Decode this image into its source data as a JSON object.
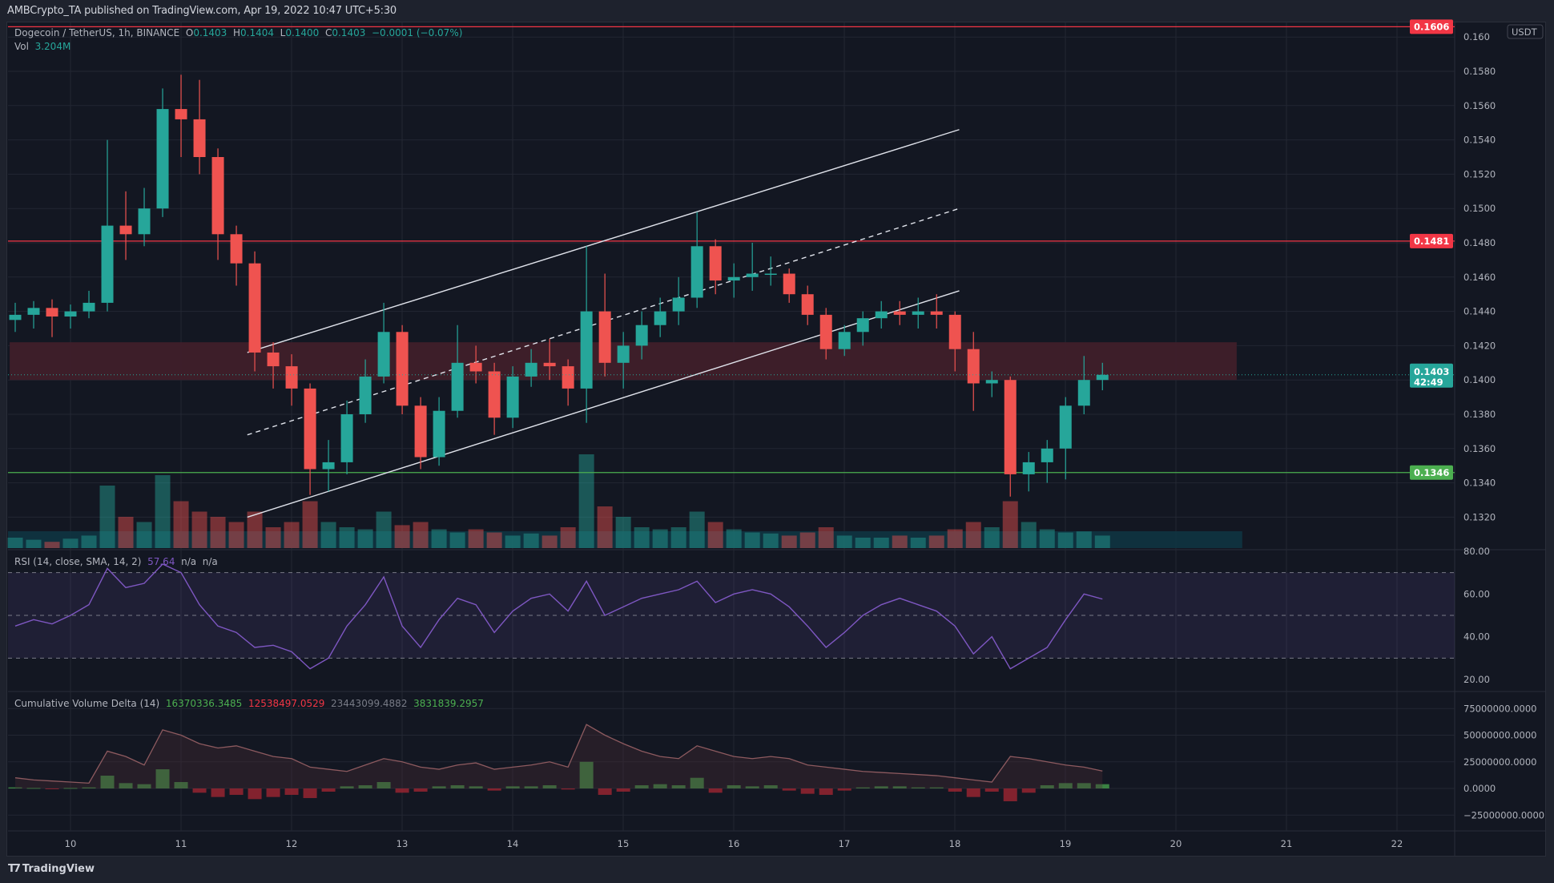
{
  "publisher_line": "AMBCrypto_TA published on TradingView.com, Apr 19, 2022 10:47 UTC+5:30",
  "footer": {
    "logo_text": "TradingView"
  },
  "legend": {
    "symbol": "Dogecoin / TetherUS, 1h, BINANCE",
    "o_label": "O",
    "o": "0.1403",
    "h_label": "H",
    "h": "0.1404",
    "l_label": "L",
    "l": "0.1400",
    "c_label": "C",
    "c": "0.1403",
    "change": "−0.0001 (−0.07%)",
    "vol_label": "Vol",
    "vol": "3.204M"
  },
  "rsi_legend": {
    "title": "RSI (14, close, SMA, 14, 2)",
    "value": "57.64",
    "na1": "n/a",
    "na2": "n/a"
  },
  "cvd_legend": {
    "title": "Cumulative Volume Delta (14)",
    "v1": "16370336.3485",
    "v2": "12538497.0529",
    "v3": "23443099.4882",
    "v4": "3831839.2957"
  },
  "currency_badge": "USDT",
  "colors": {
    "up": "#26a69a",
    "down": "#ef5350",
    "resistance": "#f23645",
    "support": "#4caf50",
    "zone": "#3f1f2a",
    "rsi": "#7e57c2",
    "grid": "#232733"
  },
  "chart_data": [
    {
      "type": "candlestick",
      "title": "Dogecoin / TetherUS, 1h, BINANCE",
      "x_axis": {
        "ticks": [
          "10",
          "11",
          "12",
          "13",
          "14",
          "15",
          "16",
          "17",
          "18",
          "19",
          "20",
          "21",
          "22"
        ],
        "range_days": [
          9.45,
          22.5
        ],
        "unit": "day of April 2022"
      },
      "y_axis": {
        "ticks": [
          "0.1320",
          "0.1340",
          "0.1360",
          "0.1380",
          "0.1400",
          "0.1420",
          "0.1440",
          "0.1460",
          "0.1480",
          "0.1500",
          "0.1520",
          "0.1540",
          "0.1560",
          "0.1580",
          "0.160"
        ],
        "range": [
          0.1303,
          0.1612
        ],
        "unit": "USDT"
      },
      "candle_interval_note": "approximate 4h aggregation of 1h candles",
      "candle_start_day": 9.5,
      "candle_step_day": 0.1667,
      "candles_ohlcv": [
        [
          0.1435,
          0.1445,
          0.1428,
          0.1438,
          10
        ],
        [
          0.1438,
          0.1446,
          0.143,
          0.1442,
          8
        ],
        [
          0.1442,
          0.1447,
          0.1425,
          0.1437,
          6
        ],
        [
          0.1437,
          0.1444,
          0.143,
          0.144,
          9
        ],
        [
          0.144,
          0.1452,
          0.1436,
          0.1445,
          12
        ],
        [
          0.1445,
          0.154,
          0.144,
          0.149,
          60
        ],
        [
          0.149,
          0.151,
          0.147,
          0.1485,
          30
        ],
        [
          0.1485,
          0.1512,
          0.1478,
          0.15,
          25
        ],
        [
          0.15,
          0.157,
          0.1495,
          0.1558,
          70
        ],
        [
          0.1558,
          0.1578,
          0.153,
          0.1552,
          45
        ],
        [
          0.1552,
          0.1575,
          0.152,
          0.153,
          35
        ],
        [
          0.153,
          0.1535,
          0.147,
          0.1485,
          30
        ],
        [
          0.1485,
          0.149,
          0.1455,
          0.1468,
          25
        ],
        [
          0.1468,
          0.1475,
          0.1405,
          0.1416,
          35
        ],
        [
          0.1416,
          0.1422,
          0.1395,
          0.1408,
          20
        ],
        [
          0.1408,
          0.1415,
          0.1385,
          0.1395,
          25
        ],
        [
          0.1395,
          0.1398,
          0.1333,
          0.1348,
          45
        ],
        [
          0.1348,
          0.1365,
          0.1335,
          0.1352,
          25
        ],
        [
          0.1352,
          0.1388,
          0.1345,
          0.138,
          20
        ],
        [
          0.138,
          0.1412,
          0.1375,
          0.1402,
          18
        ],
        [
          0.1402,
          0.1445,
          0.1398,
          0.1428,
          35
        ],
        [
          0.1428,
          0.1432,
          0.138,
          0.1385,
          22
        ],
        [
          0.1385,
          0.139,
          0.1348,
          0.1355,
          25
        ],
        [
          0.1355,
          0.139,
          0.135,
          0.1382,
          18
        ],
        [
          0.1382,
          0.1432,
          0.1378,
          0.141,
          15
        ],
        [
          0.141,
          0.142,
          0.1398,
          0.1405,
          18
        ],
        [
          0.1405,
          0.141,
          0.1368,
          0.1378,
          15
        ],
        [
          0.1378,
          0.1408,
          0.1372,
          0.1402,
          12
        ],
        [
          0.1402,
          0.1418,
          0.1396,
          0.141,
          14
        ],
        [
          0.141,
          0.1424,
          0.14,
          0.1408,
          12
        ],
        [
          0.1408,
          0.1412,
          0.1385,
          0.1395,
          20
        ],
        [
          0.1395,
          0.1478,
          0.1375,
          0.144,
          90
        ],
        [
          0.144,
          0.1462,
          0.1402,
          0.141,
          40
        ],
        [
          0.141,
          0.1428,
          0.1395,
          0.142,
          30
        ],
        [
          0.142,
          0.144,
          0.1412,
          0.1432,
          20
        ],
        [
          0.1432,
          0.1448,
          0.1425,
          0.144,
          18
        ],
        [
          0.144,
          0.146,
          0.1432,
          0.1448,
          20
        ],
        [
          0.1448,
          0.1498,
          0.1442,
          0.1478,
          35
        ],
        [
          0.1478,
          0.1482,
          0.145,
          0.1458,
          25
        ],
        [
          0.1458,
          0.1468,
          0.1448,
          0.146,
          18
        ],
        [
          0.146,
          0.148,
          0.1452,
          0.1462,
          15
        ],
        [
          0.1462,
          0.1472,
          0.1455,
          0.1462,
          14
        ],
        [
          0.1462,
          0.1465,
          0.1445,
          0.145,
          12
        ],
        [
          0.145,
          0.1455,
          0.1432,
          0.1438,
          15
        ],
        [
          0.1438,
          0.1442,
          0.1412,
          0.1418,
          20
        ],
        [
          0.1418,
          0.1432,
          0.1414,
          0.1428,
          12
        ],
        [
          0.1428,
          0.144,
          0.142,
          0.1436,
          10
        ],
        [
          0.1436,
          0.1446,
          0.143,
          0.144,
          10
        ],
        [
          0.144,
          0.1446,
          0.1432,
          0.1438,
          12
        ],
        [
          0.1438,
          0.1448,
          0.143,
          0.144,
          10
        ],
        [
          0.144,
          0.145,
          0.143,
          0.1438,
          12
        ],
        [
          0.1438,
          0.144,
          0.1405,
          0.1418,
          18
        ],
        [
          0.1418,
          0.1428,
          0.1382,
          0.1398,
          25
        ],
        [
          0.1398,
          0.1405,
          0.139,
          0.14,
          20
        ],
        [
          0.14,
          0.1402,
          0.1332,
          0.1345,
          45
        ],
        [
          0.1345,
          0.1358,
          0.1335,
          0.1352,
          25
        ],
        [
          0.1352,
          0.1365,
          0.134,
          0.136,
          18
        ],
        [
          0.136,
          0.139,
          0.1342,
          0.1385,
          15
        ],
        [
          0.1385,
          0.1414,
          0.138,
          0.14,
          16
        ],
        [
          0.14,
          0.141,
          0.1394,
          0.1403,
          12
        ]
      ],
      "horizontal_lines": [
        {
          "price": 0.1606,
          "label": "0.1606",
          "color": "#f23645"
        },
        {
          "price": 0.1481,
          "label": "0.1481",
          "color": "#f23645"
        },
        {
          "price": 0.1346,
          "label": "0.1346",
          "color": "#4caf50"
        }
      ],
      "zone": {
        "from_day": 9.45,
        "to_day": 20.55,
        "low": 0.14,
        "high": 0.1422,
        "color": "#3f1f2a"
      },
      "channel": {
        "upper": [
          [
            11.6,
            0.1416
          ],
          [
            18.04,
            0.1546
          ]
        ],
        "middle": [
          [
            11.6,
            0.1368
          ],
          [
            18.04,
            0.15
          ]
        ],
        "lower": [
          [
            11.6,
            0.132
          ],
          [
            18.04,
            0.1452
          ]
        ]
      },
      "last_price": {
        "value": "0.1403",
        "countdown": "42:49"
      }
    },
    {
      "type": "line",
      "title": "RSI (14, close, SMA, 14, 2)",
      "y_axis": {
        "ticks": [
          "80.00",
          "60.00",
          "40.00",
          "20.00"
        ],
        "range": [
          20,
          80
        ]
      },
      "bands": [
        70,
        50,
        30
      ],
      "values": [
        45,
        48,
        46,
        50,
        55,
        72,
        63,
        65,
        74,
        70,
        55,
        45,
        42,
        35,
        36,
        33,
        25,
        30,
        45,
        55,
        68,
        45,
        35,
        48,
        58,
        55,
        42,
        52,
        58,
        60,
        52,
        66,
        50,
        54,
        58,
        60,
        62,
        66,
        56,
        60,
        62,
        60,
        54,
        45,
        35,
        42,
        50,
        55,
        58,
        55,
        52,
        45,
        32,
        40,
        25,
        30,
        35,
        48,
        60,
        57.64
      ]
    },
    {
      "type": "line+bar",
      "title": "Cumulative Volume Delta (14)",
      "y_axis": {
        "ticks": [
          "75000000.0000",
          "50000000.0000",
          "25000000.0000",
          "0.0000",
          "−25000000.0000"
        ],
        "range_millions": [
          -35,
          82
        ]
      },
      "line_millions": [
        10,
        8,
        7,
        6,
        5,
        35,
        30,
        22,
        55,
        50,
        42,
        38,
        40,
        35,
        30,
        28,
        20,
        18,
        16,
        22,
        28,
        25,
        20,
        18,
        22,
        24,
        18,
        20,
        22,
        25,
        20,
        60,
        50,
        42,
        35,
        30,
        28,
        40,
        35,
        30,
        28,
        30,
        28,
        22,
        20,
        18,
        16,
        15,
        14,
        13,
        12,
        10,
        8,
        6,
        30,
        28,
        25,
        22,
        20,
        16.37
      ],
      "delta_millions": [
        1,
        0.5,
        -0.5,
        0.5,
        1,
        12,
        5,
        4,
        18,
        6,
        -4,
        -8,
        -6,
        -10,
        -8,
        -6,
        -9,
        -3,
        2,
        3,
        6,
        -4,
        -3,
        2,
        3,
        2,
        -2,
        2,
        2,
        3,
        -1,
        25,
        -6,
        -3,
        3,
        4,
        3,
        10,
        -4,
        3,
        2,
        3,
        -2,
        -5,
        -6,
        -2,
        1,
        2,
        2,
        1,
        1,
        -3,
        -8,
        -3,
        -12,
        -4,
        3,
        5,
        5,
        4
      ]
    }
  ]
}
